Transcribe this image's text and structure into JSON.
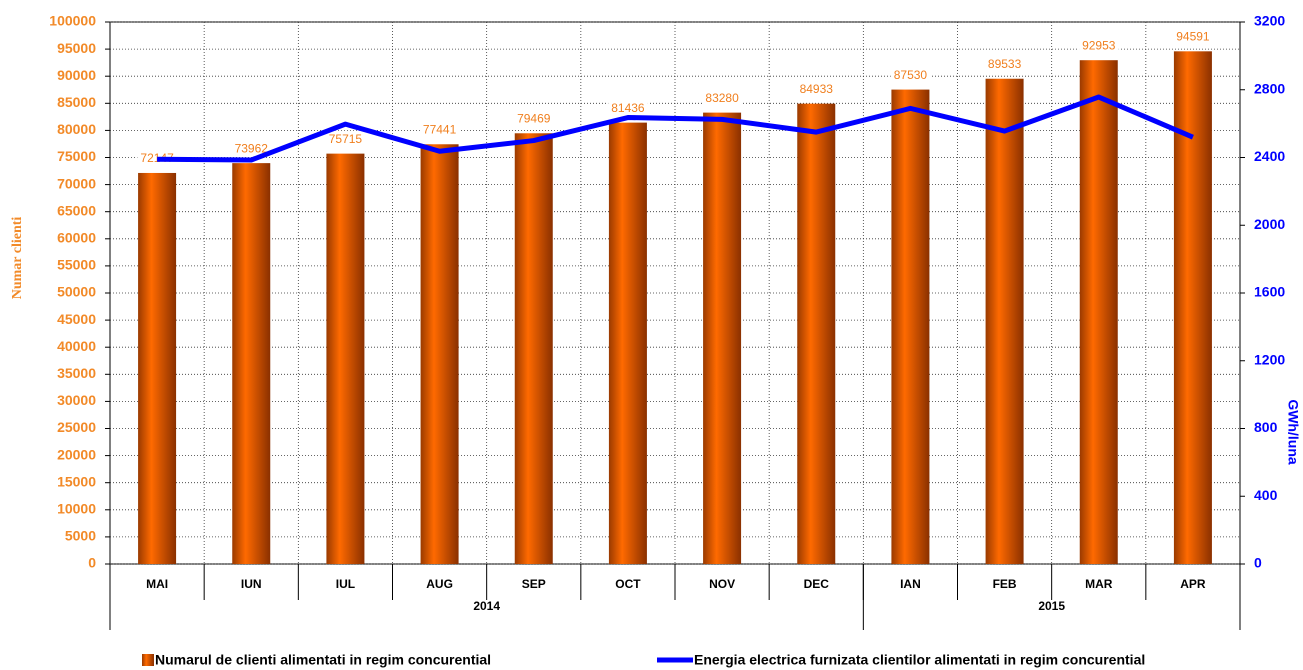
{
  "chart_data": {
    "type": "bar-line",
    "groups": [
      {
        "name": "2014",
        "categories": [
          "MAI",
          "IUN",
          "IUL",
          "AUG",
          "SEP",
          "OCT",
          "NOV",
          "DEC"
        ]
      },
      {
        "name": "2015",
        "categories": [
          "IAN",
          "FEB",
          "MAR",
          "APR"
        ]
      }
    ],
    "series": [
      {
        "name": "Numarul de clienti alimentati in regim concurential",
        "type": "bar",
        "color": "#ff6a00",
        "values": [
          72147,
          73962,
          75715,
          77441,
          79469,
          81436,
          83280,
          84933,
          87530,
          89533,
          92953,
          94591
        ]
      },
      {
        "name": "Energia electrica furnizata clientilor alimentati in regim concurential",
        "type": "line",
        "axis": "y2",
        "color": "#0000ff",
        "values": [
          2390,
          2385,
          2597,
          2437,
          2500,
          2636,
          2625,
          2550,
          2690,
          2556,
          2757,
          2520
        ]
      }
    ],
    "y_label": "Numar clienti",
    "y2_label": "GWh/luna",
    "ylim": [
      0,
      100000
    ],
    "yticks": [
      0,
      5000,
      10000,
      15000,
      20000,
      25000,
      30000,
      35000,
      40000,
      45000,
      50000,
      55000,
      60000,
      65000,
      70000,
      75000,
      80000,
      85000,
      90000,
      95000,
      100000
    ],
    "y2lim": [
      0,
      3200
    ],
    "y2ticks": [
      0,
      400,
      800,
      1200,
      1600,
      2000,
      2400,
      2800,
      3200
    ],
    "grid": true,
    "legend_position": "bottom"
  }
}
